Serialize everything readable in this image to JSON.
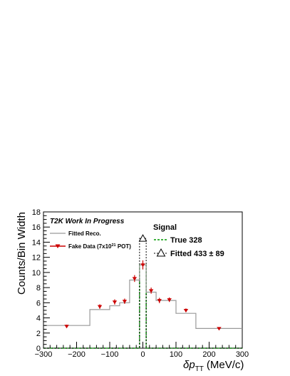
{
  "chart_data": {
    "type": "histogram",
    "xlabel": "δp_TT (MeV/c)",
    "xlabel_main": "δp",
    "xlabel_sub": "TT",
    "xlabel_unit": "(MeV/c)",
    "ylabel": "Counts/Bin Width",
    "xlim": [
      -300,
      300
    ],
    "ylim": [
      0,
      18
    ],
    "x_ticks": [
      -300,
      -200,
      -100,
      0,
      100,
      200,
      300
    ],
    "y_ticks": [
      0,
      2,
      4,
      6,
      8,
      10,
      12,
      14,
      16,
      18
    ],
    "grid": false,
    "annotations": {
      "work_in_progress": "T2K Work In Progress"
    },
    "legend_left": {
      "fitted_label": "Fitted Reco.",
      "fake_label_prefix": "Fake Data (7x10",
      "fake_label_exp": "21",
      "fake_label_suffix": " POT)"
    },
    "legend_right": {
      "title": "Signal",
      "true_label": "True 328",
      "fitted_label": "Fitted 433 ± 89"
    },
    "fitted_reco": {
      "name": "Fitted Reco.",
      "color": "#999999",
      "bin_edges": [
        -300,
        -160,
        -100,
        -70,
        -40,
        -10,
        10,
        40,
        60,
        100,
        160,
        300
      ],
      "values": [
        3.0,
        5.1,
        5.6,
        6.0,
        9.0,
        11.0,
        7.4,
        6.3,
        6.3,
        4.6,
        2.6
      ]
    },
    "fake_data": {
      "name": "Fake Data (7x10^21 POT)",
      "color": "#cc0000",
      "x": [
        -230,
        -130,
        -85,
        -55,
        -25,
        0,
        25,
        50,
        80,
        130,
        230
      ],
      "y": [
        2.9,
        5.5,
        6.1,
        6.2,
        9.2,
        11.0,
        7.6,
        6.3,
        6.4,
        5.0,
        2.6
      ],
      "err": [
        0.2,
        0.3,
        0.35,
        0.35,
        0.45,
        0.6,
        0.4,
        0.35,
        0.3,
        0.25,
        0.15
      ]
    },
    "signal_true": {
      "name": "True 328",
      "color": "#009900",
      "bin_edges": [
        -300,
        -10,
        10,
        300
      ],
      "values": [
        0.0,
        11.0,
        0.0
      ]
    },
    "signal_fitted": {
      "name": "Fitted 433 ± 89",
      "color": "#000000",
      "bin_edges": [
        -300,
        -10,
        10,
        300
      ],
      "values": [
        0.0,
        14.5,
        0.0
      ]
    }
  }
}
